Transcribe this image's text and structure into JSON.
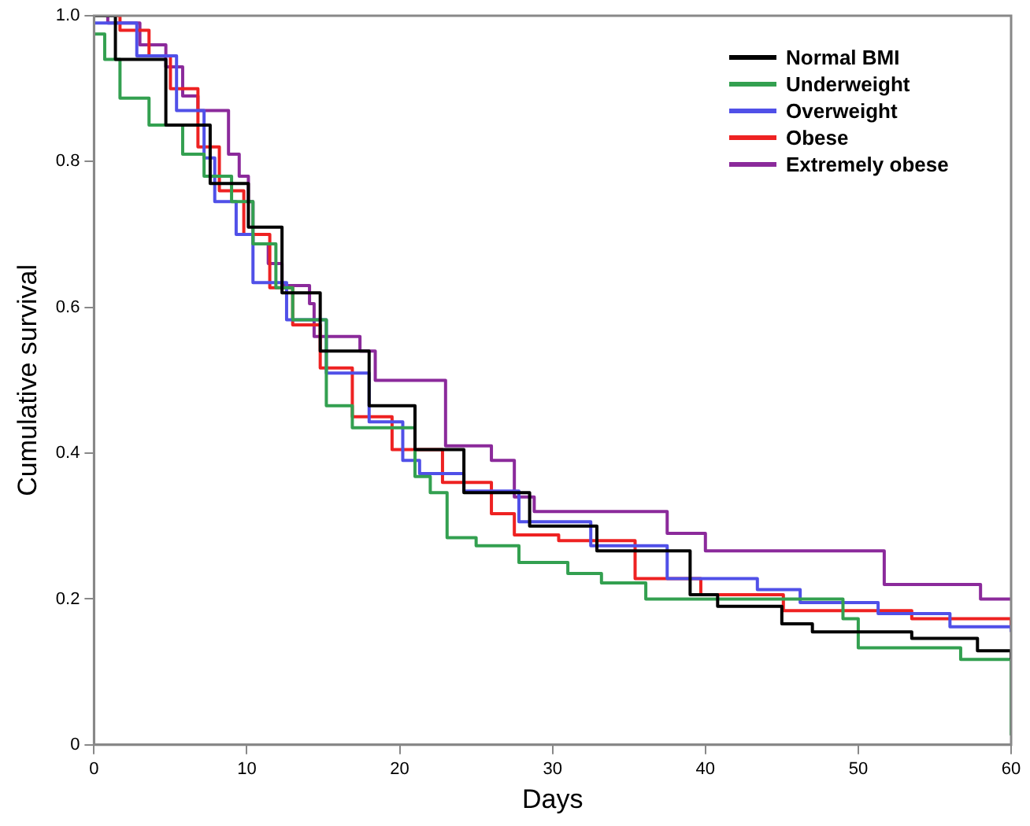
{
  "chart_data": {
    "type": "step",
    "xlabel": "Days",
    "ylabel": "Cumulative survival",
    "xlim": [
      0,
      60
    ],
    "ylim": [
      0,
      1
    ],
    "xticks": [
      0,
      10,
      20,
      30,
      40,
      50,
      60
    ],
    "yticks": [
      0,
      0.2,
      0.4,
      0.6,
      0.8,
      {
        "value": 1,
        "label": "1.0"
      }
    ],
    "grid": false,
    "legend": "top right",
    "marker": "none",
    "line_style": "solid",
    "series": [
      {
        "name": "Normal BMI",
        "color": "#000000",
        "x": [
          0,
          1.4,
          4.7,
          7.6,
          10.1,
          12.3,
          14.8,
          18,
          21,
          24.2,
          28.5,
          32.9,
          39,
          40.8,
          45,
          47,
          53.5,
          57.8,
          60
        ],
        "values": [
          1,
          0.94,
          0.85,
          0.77,
          0.71,
          0.62,
          0.54,
          0.465,
          0.405,
          0.346,
          0.3,
          0.266,
          0.206,
          0.19,
          0.166,
          0.155,
          0.146,
          0.129,
          0.117
        ]
      },
      {
        "name": "Underweight",
        "color": "#33a050",
        "x": [
          0,
          0.7,
          1.7,
          3.6,
          5.8,
          7.2,
          9,
          10.4,
          11.9,
          13,
          15.2,
          16.9,
          21,
          22,
          23.1,
          25,
          27.8,
          31,
          33.2,
          36.1,
          49,
          50,
          56.7,
          59.9,
          60
        ],
        "values": [
          0.975,
          0.94,
          0.887,
          0.85,
          0.81,
          0.78,
          0.745,
          0.687,
          0.627,
          0.583,
          0.465,
          0.435,
          0.368,
          0.346,
          0.284,
          0.273,
          0.25,
          0.235,
          0.222,
          0.2,
          0.173,
          0.133,
          0.117,
          0.117,
          0.013
        ]
      },
      {
        "name": "Overweight",
        "color": "#5050e8",
        "x": [
          0,
          2.8,
          5.4,
          7.2,
          7.9,
          9.3,
          10.4,
          12.6,
          15.2,
          18,
          20.2,
          21.3,
          24.2,
          27.8,
          32.5,
          37.5,
          43.4,
          46.2,
          51.3,
          56,
          60
        ],
        "values": [
          0.99,
          0.945,
          0.87,
          0.805,
          0.745,
          0.7,
          0.634,
          0.583,
          0.51,
          0.443,
          0.39,
          0.372,
          0.348,
          0.306,
          0.273,
          0.228,
          0.213,
          0.195,
          0.18,
          0.162,
          0.155
        ]
      },
      {
        "name": "Obese",
        "color": "#ee2222",
        "x": [
          0,
          1.7,
          3.6,
          5,
          6.8,
          8.2,
          9.8,
          11.5,
          13,
          14.8,
          16.9,
          19.5,
          22.8,
          26,
          27.5,
          30.4,
          35.4,
          39.7,
          45.1,
          53.5,
          60
        ],
        "values": [
          1,
          0.98,
          0.945,
          0.9,
          0.82,
          0.76,
          0.7,
          0.627,
          0.576,
          0.517,
          0.45,
          0.405,
          0.36,
          0.317,
          0.288,
          0.28,
          0.228,
          0.206,
          0.184,
          0.173,
          0.155
        ]
      },
      {
        "name": "Extremely obese",
        "color": "#8b2a9b",
        "x": [
          0,
          0.9,
          3,
          4.7,
          5.8,
          6.8,
          8.8,
          9.5,
          10.1,
          10.4,
          11.4,
          12.3,
          14.1,
          14.4,
          17.4,
          18.4,
          23,
          26,
          27.5,
          28.8,
          37.5,
          40,
          51.7,
          58,
          60
        ],
        "values": [
          1,
          0.99,
          0.96,
          0.93,
          0.89,
          0.87,
          0.81,
          0.78,
          0.745,
          0.687,
          0.66,
          0.63,
          0.605,
          0.56,
          0.54,
          0.5,
          0.41,
          0.39,
          0.34,
          0.32,
          0.29,
          0.266,
          0.22,
          0.2,
          0.2
        ]
      }
    ]
  }
}
